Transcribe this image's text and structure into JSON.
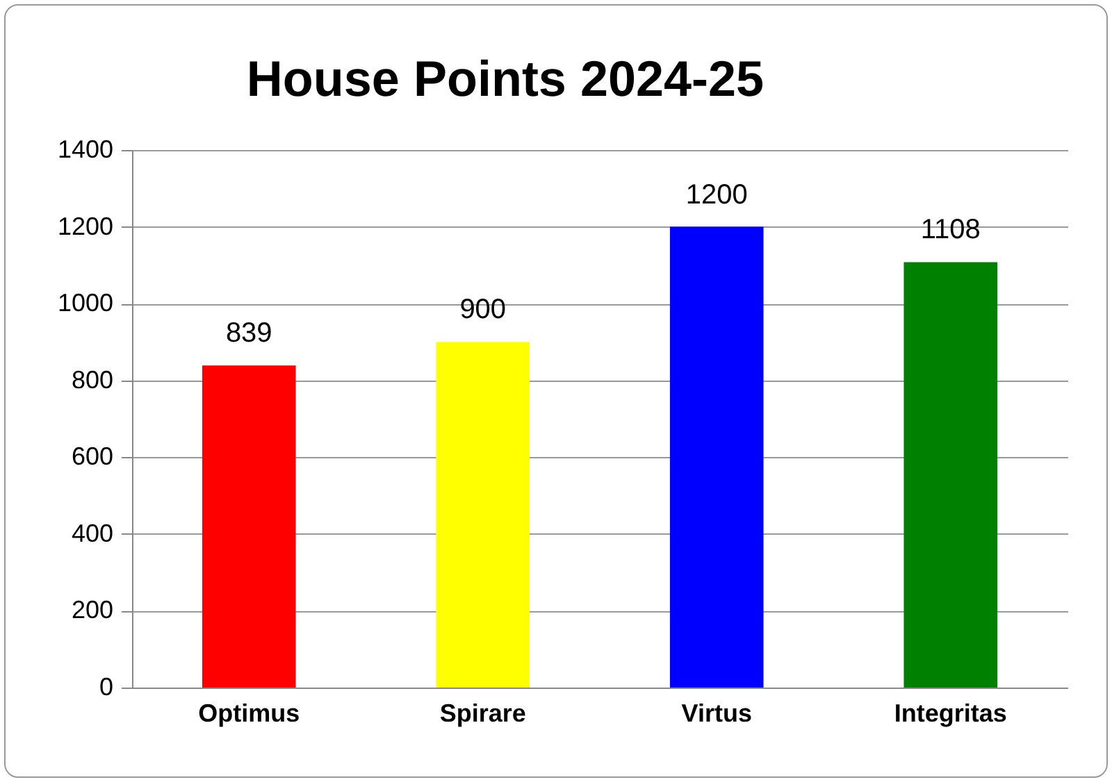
{
  "chart_data": {
    "type": "bar",
    "title": "House Points 2024-25",
    "categories": [
      "Optimus",
      "Spirare",
      "Virtus",
      "Integritas"
    ],
    "values": [
      839,
      900,
      1200,
      1108
    ],
    "colors": [
      "#ff0000",
      "#ffff00",
      "#0000ff",
      "#008000"
    ],
    "ylim": [
      0,
      1400
    ],
    "yticks": [
      0,
      200,
      400,
      600,
      800,
      1000,
      1200,
      1400
    ],
    "grid": "y",
    "data_labels": true
  }
}
